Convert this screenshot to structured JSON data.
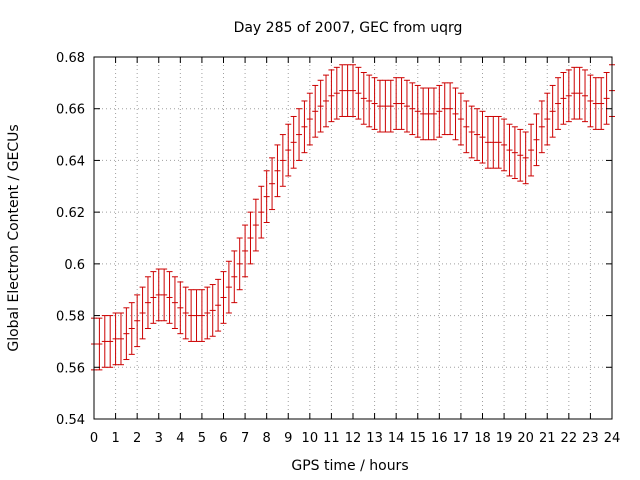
{
  "chart_data": {
    "type": "scatter",
    "title": "Day 285 of 2007, GEC from uqrg",
    "xlabel": "GPS time / hours",
    "ylabel": "Global Electron Content / GECUs",
    "xlim": [
      0,
      24
    ],
    "ylim": [
      0.54,
      0.68
    ],
    "xticks": [
      "0",
      "1",
      "2",
      "3",
      "4",
      "5",
      "6",
      "7",
      "8",
      "9",
      "10",
      "11",
      "12",
      "13",
      "14",
      "15",
      "16",
      "17",
      "18",
      "19",
      "20",
      "21",
      "22",
      "23",
      "24"
    ],
    "yticks": [
      "0.54",
      "0.56",
      "0.58",
      "0.6",
      "0.62",
      "0.64",
      "0.66",
      "0.68"
    ],
    "grid": true,
    "series_color": "#cc0000",
    "error": 0.01,
    "x": [
      0,
      0.25,
      0.5,
      0.75,
      1,
      1.25,
      1.5,
      1.75,
      2,
      2.25,
      2.5,
      2.75,
      3,
      3.25,
      3.5,
      3.75,
      4,
      4.25,
      4.5,
      4.75,
      5,
      5.25,
      5.5,
      5.75,
      6,
      6.25,
      6.5,
      6.75,
      7,
      7.25,
      7.5,
      7.75,
      8,
      8.25,
      8.5,
      8.75,
      9,
      9.25,
      9.5,
      9.75,
      10,
      10.25,
      10.5,
      10.75,
      11,
      11.25,
      11.5,
      11.75,
      12,
      12.25,
      12.5,
      12.75,
      13,
      13.25,
      13.5,
      13.75,
      14,
      14.25,
      14.5,
      14.75,
      15,
      15.25,
      15.5,
      15.75,
      16,
      16.25,
      16.5,
      16.75,
      17,
      17.25,
      17.5,
      17.75,
      18,
      18.25,
      18.5,
      18.75,
      19,
      19.25,
      19.5,
      19.75,
      20,
      20.25,
      20.5,
      20.75,
      21,
      21.25,
      21.5,
      21.75,
      22,
      22.25,
      22.5,
      22.75,
      23,
      23.25,
      23.5,
      23.75,
      24
    ],
    "y": [
      0.569,
      0.569,
      0.57,
      0.57,
      0.571,
      0.571,
      0.573,
      0.575,
      0.578,
      0.581,
      0.585,
      0.587,
      0.588,
      0.588,
      0.587,
      0.585,
      0.583,
      0.581,
      0.58,
      0.58,
      0.58,
      0.581,
      0.582,
      0.584,
      0.587,
      0.591,
      0.595,
      0.6,
      0.605,
      0.61,
      0.615,
      0.62,
      0.626,
      0.631,
      0.636,
      0.64,
      0.644,
      0.647,
      0.65,
      0.653,
      0.656,
      0.659,
      0.661,
      0.663,
      0.665,
      0.666,
      0.667,
      0.667,
      0.667,
      0.666,
      0.664,
      0.663,
      0.662,
      0.661,
      0.661,
      0.661,
      0.662,
      0.662,
      0.661,
      0.66,
      0.659,
      0.658,
      0.658,
      0.658,
      0.659,
      0.66,
      0.66,
      0.658,
      0.656,
      0.653,
      0.651,
      0.65,
      0.649,
      0.647,
      0.647,
      0.647,
      0.646,
      0.644,
      0.643,
      0.642,
      0.641,
      0.644,
      0.648,
      0.653,
      0.656,
      0.659,
      0.662,
      0.664,
      0.665,
      0.666,
      0.666,
      0.665,
      0.663,
      0.662,
      0.662,
      0.664,
      0.667
    ]
  }
}
